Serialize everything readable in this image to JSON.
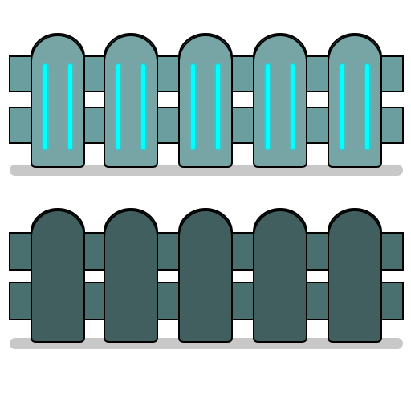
{
  "sprite_sheet": {
    "asset": "fence tiles",
    "background": "#ffffff",
    "rows": [
      {
        "id": "lit",
        "post_count": 5,
        "glow": true,
        "colors": {
          "rail": "#6b9e9e",
          "post": "#77a5a5",
          "post_cap": "#5f8f8f",
          "glow_outer": "#00e5ee",
          "glow_inner": "#00ffff",
          "shadow": "#c8c8c8",
          "outline": "#000000"
        }
      },
      {
        "id": "unlit",
        "post_count": 5,
        "glow": false,
        "colors": {
          "rail": "#4a6f6f",
          "post": "#415f5f",
          "post_cap": "#3a5555",
          "shadow": "#c8c8c8",
          "outline": "#000000"
        }
      }
    ]
  }
}
